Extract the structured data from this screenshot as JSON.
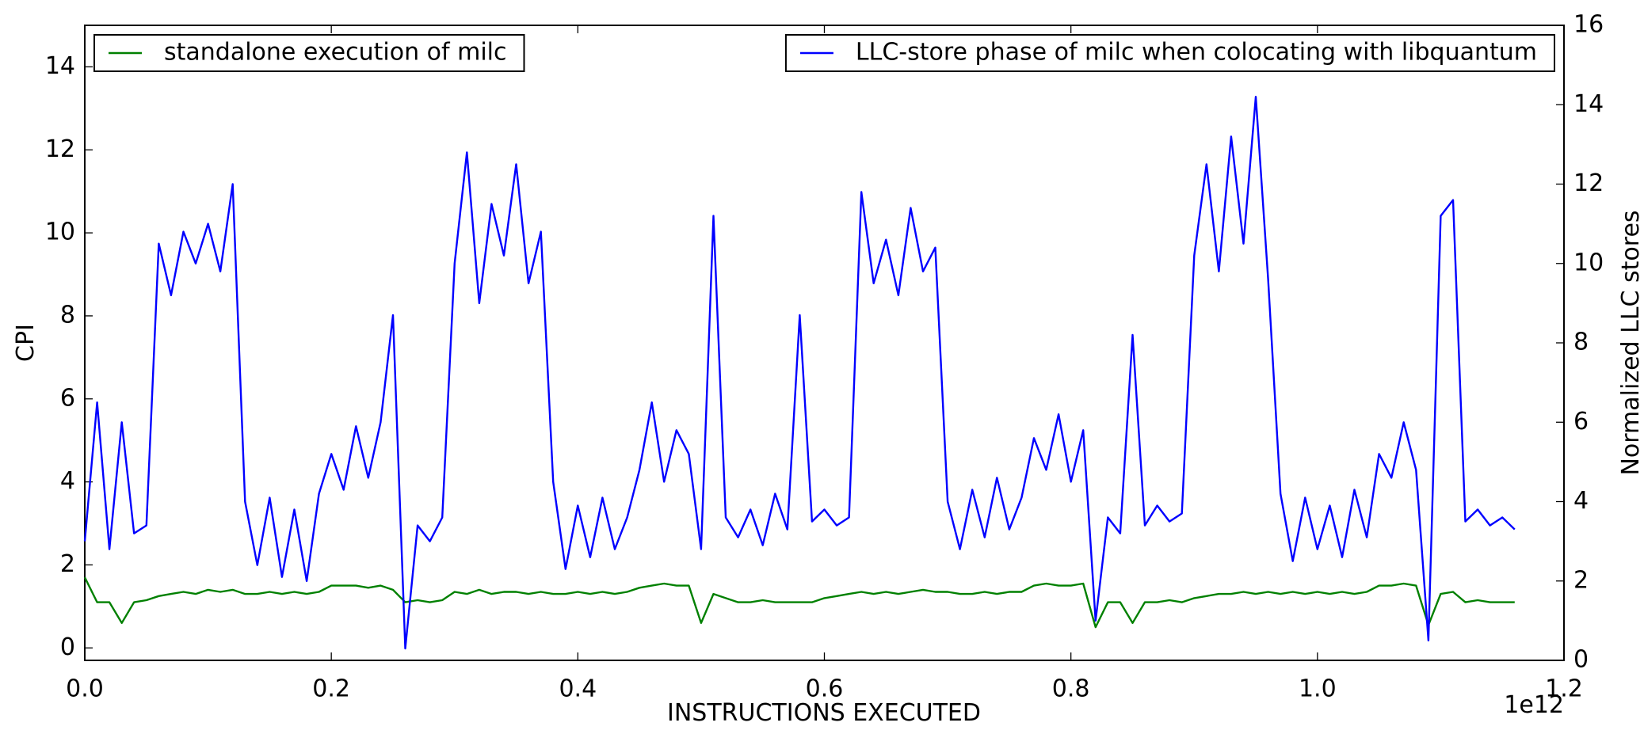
{
  "chart_data": {
    "type": "line",
    "xlabel": "INSTRUCTIONS EXECUTED",
    "ylabel": "CPI",
    "y2label": "Normalized LLC stores",
    "x_offset_label": "1e12",
    "xlim": [
      0,
      1.2
    ],
    "xticks": [
      {
        "value": 0,
        "label": "0.0"
      },
      0.2,
      0.4,
      0.6,
      0.8,
      {
        "value": 1,
        "label": "1.0"
      },
      1.2
    ],
    "ylim": [
      -0.3,
      15
    ],
    "yticks": [
      0,
      2,
      4,
      6,
      8,
      10,
      12,
      14
    ],
    "y2lim": [
      0,
      16
    ],
    "y2ticks": [
      0,
      2,
      4,
      6,
      8,
      10,
      12,
      14,
      16
    ],
    "grid": false,
    "x": [
      0,
      0.01,
      0.02,
      0.03,
      0.04,
      0.05,
      0.06,
      0.07,
      0.08,
      0.09,
      0.1,
      0.11,
      0.12,
      0.13,
      0.14,
      0.15,
      0.16,
      0.17,
      0.18,
      0.19,
      0.2,
      0.21,
      0.22,
      0.23,
      0.24,
      0.25,
      0.26,
      0.27,
      0.28,
      0.29,
      0.3,
      0.31,
      0.32,
      0.33,
      0.34,
      0.35,
      0.36,
      0.37,
      0.38,
      0.39,
      0.4,
      0.41,
      0.42,
      0.43,
      0.44,
      0.45,
      0.46,
      0.47,
      0.48,
      0.49,
      0.5,
      0.51,
      0.52,
      0.53,
      0.54,
      0.55,
      0.56,
      0.57,
      0.58,
      0.59,
      0.6,
      0.61,
      0.62,
      0.63,
      0.64,
      0.65,
      0.66,
      0.67,
      0.68,
      0.69,
      0.7,
      0.71,
      0.72,
      0.73,
      0.74,
      0.75,
      0.76,
      0.77,
      0.78,
      0.79,
      0.8,
      0.81,
      0.82,
      0.83,
      0.84,
      0.85,
      0.86,
      0.87,
      0.88,
      0.89,
      0.9,
      0.91,
      0.92,
      0.93,
      0.94,
      0.95,
      0.96,
      0.97,
      0.98,
      0.99,
      1,
      1.01,
      1.02,
      1.03,
      1.04,
      1.05,
      1.06,
      1.07,
      1.08,
      1.09,
      1.1,
      1.11,
      1.12,
      1.13,
      1.14,
      1.15,
      1.16
    ],
    "series": [
      {
        "name": "standalone execution of milc",
        "color": "#008000",
        "axis": "y",
        "legend_loc": "upper left",
        "values": [
          1.7,
          1.1,
          1.1,
          0.6,
          1.1,
          1.15,
          1.25,
          1.3,
          1.35,
          1.3,
          1.4,
          1.35,
          1.4,
          1.3,
          1.3,
          1.35,
          1.3,
          1.35,
          1.3,
          1.35,
          1.5,
          1.5,
          1.5,
          1.45,
          1.5,
          1.4,
          1.1,
          1.15,
          1.1,
          1.15,
          1.35,
          1.3,
          1.4,
          1.3,
          1.35,
          1.35,
          1.3,
          1.35,
          1.3,
          1.3,
          1.35,
          1.3,
          1.35,
          1.3,
          1.35,
          1.45,
          1.5,
          1.55,
          1.5,
          1.5,
          0.6,
          1.3,
          1.2,
          1.1,
          1.1,
          1.15,
          1.1,
          1.1,
          1.1,
          1.1,
          1.2,
          1.25,
          1.3,
          1.35,
          1.3,
          1.35,
          1.3,
          1.35,
          1.4,
          1.35,
          1.35,
          1.3,
          1.3,
          1.35,
          1.3,
          1.35,
          1.35,
          1.5,
          1.55,
          1.5,
          1.5,
          1.55,
          0.5,
          1.1,
          1.1,
          0.6,
          1.1,
          1.1,
          1.15,
          1.1,
          1.2,
          1.25,
          1.3,
          1.3,
          1.35,
          1.3,
          1.35,
          1.3,
          1.35,
          1.3,
          1.35,
          1.3,
          1.35,
          1.3,
          1.35,
          1.5,
          1.5,
          1.55,
          1.5,
          0.55,
          1.3,
          1.35,
          1.1,
          1.15,
          1.1,
          1.1,
          1.1
        ]
      },
      {
        "name": "LLC-store phase of milc when colocating with libquantum",
        "color": "#0000ff",
        "axis": "y2",
        "legend_loc": "upper right",
        "values": [
          3.0,
          6.5,
          2.8,
          6.0,
          3.2,
          3.4,
          10.5,
          9.2,
          10.8,
          10.0,
          11.0,
          9.8,
          12.0,
          4.0,
          2.4,
          4.1,
          2.1,
          3.8,
          2.0,
          4.2,
          5.2,
          4.3,
          5.9,
          4.6,
          6.0,
          8.7,
          0.3,
          3.4,
          3.0,
          3.6,
          10.0,
          12.8,
          9.0,
          11.5,
          10.2,
          12.5,
          9.5,
          10.8,
          4.5,
          2.3,
          3.9,
          2.6,
          4.1,
          2.8,
          3.6,
          4.8,
          6.5,
          4.5,
          5.8,
          5.2,
          2.8,
          11.2,
          3.6,
          3.1,
          3.8,
          2.9,
          4.2,
          3.3,
          8.7,
          3.5,
          3.8,
          3.4,
          3.6,
          11.8,
          9.5,
          10.6,
          9.2,
          11.4,
          9.8,
          10.4,
          4.0,
          2.8,
          4.3,
          3.1,
          4.6,
          3.3,
          4.1,
          5.6,
          4.8,
          6.2,
          4.5,
          5.8,
          1.0,
          3.6,
          3.2,
          8.2,
          3.4,
          3.9,
          3.5,
          3.7,
          10.2,
          12.5,
          9.8,
          13.2,
          10.5,
          14.2,
          9.6,
          4.2,
          2.5,
          4.1,
          2.8,
          3.9,
          2.6,
          4.3,
          3.1,
          5.2,
          4.6,
          6.0,
          4.8,
          0.5,
          11.2,
          11.6,
          3.5,
          3.8,
          3.4,
          3.6,
          3.3
        ]
      }
    ]
  }
}
